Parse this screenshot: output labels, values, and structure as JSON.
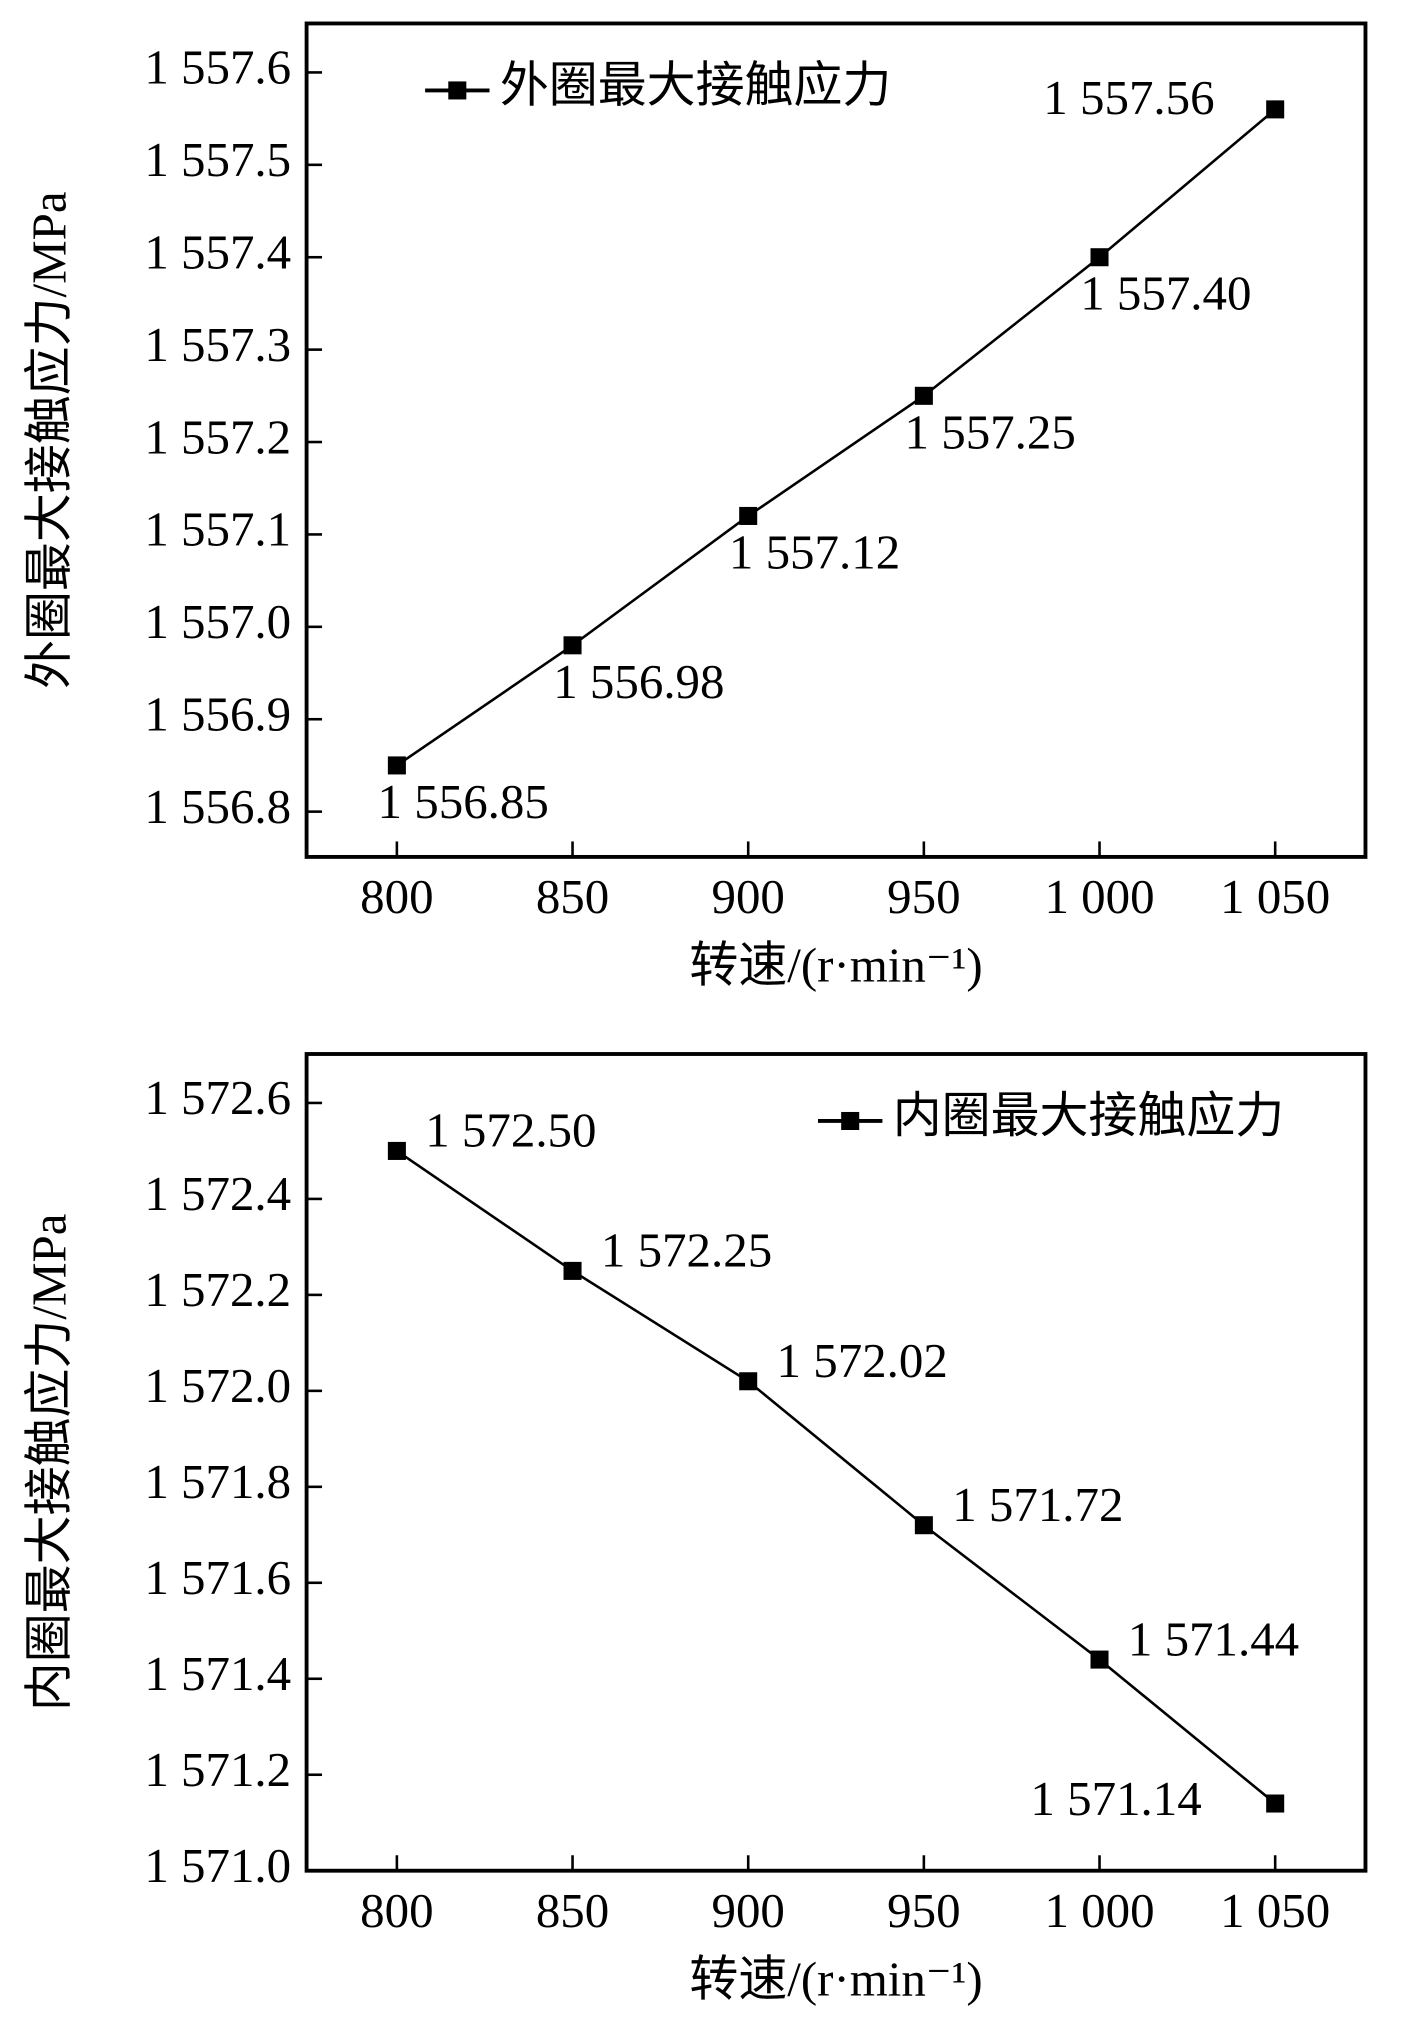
{
  "chart_data": [
    {
      "type": "line",
      "x_label": "转速/(r·min⁻¹)",
      "y_label": "外圈最大接触应力/MPa",
      "x": [
        800,
        850,
        900,
        950,
        1000,
        1050
      ],
      "series": [
        {
          "name": "外圈最大接触应力",
          "color": "#000000",
          "values": [
            1556.85,
            1556.98,
            1557.12,
            1557.25,
            1557.4,
            1557.56
          ],
          "value_labels": [
            "1 556.85",
            "1 556.98",
            "1 557.12",
            "1 557.25",
            "1 557.40",
            "1 557.56"
          ]
        }
      ],
      "xlim": [
        774.3,
        1075.7
      ],
      "xticks": [
        800,
        850,
        900,
        950,
        {
          "value": 1000,
          "label": "1 000"
        },
        {
          "value": 1050,
          "label": "1 050"
        }
      ],
      "ylim": [
        1556.751,
        1557.653
      ],
      "yticks": [
        {
          "value": 1556.8,
          "label": "1 556.8"
        },
        {
          "value": 1556.9,
          "label": "1 556.9"
        },
        {
          "value": 1557.0,
          "label": "1 557.0"
        },
        {
          "value": 1557.1,
          "label": "1 557.1"
        },
        {
          "value": 1557.2,
          "label": "1 557.2"
        },
        {
          "value": 1557.3,
          "label": "1 557.3"
        },
        {
          "value": 1557.4,
          "label": "1 557.4"
        },
        {
          "value": 1557.5,
          "label": "1 557.5"
        },
        {
          "value": 1557.6,
          "label": "1 557.6"
        }
      ],
      "legend": "upper left",
      "grid": false
    },
    {
      "type": "line",
      "x_label": "转速/(r·min⁻¹)",
      "y_label": "内圈最大接触应力/MPa",
      "x": [
        800,
        850,
        900,
        950,
        1000,
        1050
      ],
      "series": [
        {
          "name": "内圈最大接触应力",
          "color": "#000000",
          "values": [
            1572.5,
            1572.25,
            1572.02,
            1571.72,
            1571.44,
            1571.14
          ],
          "value_labels": [
            "1 572.50",
            "1 572.25",
            "1 572.02",
            "1 571.72",
            "1 571.44",
            "1 571.14"
          ]
        }
      ],
      "xlim": [
        774.3,
        1075.7
      ],
      "xticks": [
        800,
        850,
        900,
        950,
        {
          "value": 1000,
          "label": "1 000"
        },
        {
          "value": 1050,
          "label": "1 050"
        }
      ],
      "ylim": [
        1571.0,
        1572.702
      ],
      "yticks": [
        {
          "value": 1571.0,
          "label": "1 571.0"
        },
        {
          "value": 1571.2,
          "label": "1 571.2"
        },
        {
          "value": 1571.4,
          "label": "1 571.4"
        },
        {
          "value": 1571.6,
          "label": "1 571.6"
        },
        {
          "value": 1571.8,
          "label": "1 571.8"
        },
        {
          "value": 1572.0,
          "label": "1 572.0"
        },
        {
          "value": 1572.2,
          "label": "1 572.2"
        },
        {
          "value": 1572.4,
          "label": "1 572.4"
        },
        {
          "value": 1572.6,
          "label": "1 572.6"
        }
      ],
      "legend": "upper right",
      "grid": false
    }
  ]
}
